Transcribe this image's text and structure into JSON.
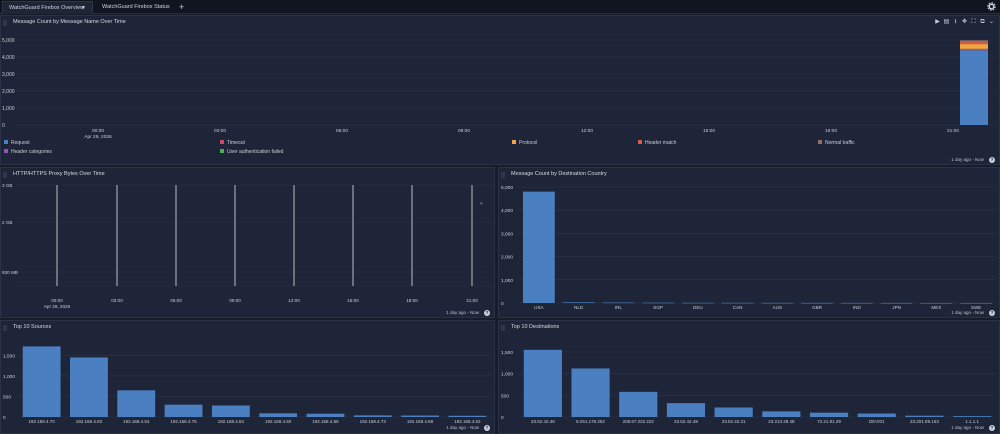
{
  "tabs": [
    {
      "label": "WatchGuard Firebox Overview",
      "active": true
    },
    {
      "label": "WatchGuard Firebox Status",
      "active": false
    }
  ],
  "icons": {
    "add_tab": "plus-icon",
    "settings": "gear-icon",
    "drag": "drag-handle-icon",
    "help": "question-icon"
  },
  "colors": {
    "bar": "#4a7fc1",
    "background": "#171c2b",
    "panel": "#1f2538"
  },
  "panels": {
    "message_count": {
      "title": "Message Count by Message Name Over Time",
      "range": "1 day ago - Now",
      "legend": [
        {
          "label": "Request",
          "color": "#4a7fc1"
        },
        {
          "label": "Timeout",
          "color": "#d3456a"
        },
        {
          "label": "Protocol",
          "color": "#f2a541"
        },
        {
          "label": "Header match",
          "color": "#d9594c"
        },
        {
          "label": "Normal traffic",
          "color": "#8f6f64"
        },
        {
          "label": "Header categories",
          "color": "#8e58b8"
        },
        {
          "label": "User authentication failed",
          "color": "#4caf50"
        }
      ]
    },
    "proxy_bytes": {
      "title": "HTTP/HTTPS Proxy Bytes Over Time",
      "range": "1 day ago - Now"
    },
    "dest_country": {
      "title": "Message Count by Destination Country",
      "range": "1 day ago - Now"
    },
    "top_sources": {
      "title": "Top 10 Sources",
      "range": "1 day ago - Now"
    },
    "top_destinations": {
      "title": "Top 10 Destinations",
      "range": "1 day ago - Now"
    }
  },
  "chart_data": [
    {
      "id": "message_count",
      "type": "bar",
      "stacked": true,
      "x": [
        "00:00",
        "03:00",
        "06:00",
        "09:00",
        "12:00",
        "15:00",
        "18:00",
        "21:00"
      ],
      "x_sublabel": "Apr 29, 2026",
      "yticks": [
        "5,000",
        "4,000",
        "3,000",
        "2,000",
        "1,000",
        "0"
      ],
      "ylim": [
        0,
        5000
      ],
      "bar_time": "21:00",
      "series": [
        {
          "name": "Request",
          "value": 4400
        },
        {
          "name": "Timeout",
          "value": 80
        },
        {
          "name": "Protocol",
          "value": 280
        },
        {
          "name": "Header match",
          "value": 120
        },
        {
          "name": "Normal traffic",
          "value": 100
        }
      ]
    },
    {
      "id": "proxy_bytes",
      "type": "line",
      "x": [
        "00:00",
        "03:00",
        "06:00",
        "09:00",
        "12:00",
        "15:00",
        "18:00",
        "21:00"
      ],
      "x_sublabel": "Apr 29, 2026",
      "yticks": [
        "3 GB",
        "2 GB",
        "930 MB"
      ],
      "ylim": [
        0,
        3
      ]
    },
    {
      "id": "dest_country",
      "type": "bar",
      "categories": [
        "USA",
        "NLD",
        "IRL",
        "SGP",
        "DEU",
        "CAN",
        "AUS",
        "GBR",
        "IND",
        "JPN",
        "MEX",
        "SWE"
      ],
      "values": [
        4800,
        30,
        20,
        15,
        10,
        8,
        6,
        5,
        4,
        3,
        2,
        2
      ],
      "yticks": [
        "5,000",
        "4,000",
        "3,000",
        "2,000",
        "1,000",
        "0"
      ],
      "ylim": [
        0,
        5000
      ]
    },
    {
      "id": "top_sources",
      "type": "bar",
      "categories": [
        "192.168.4.70",
        "192.168.4.83",
        "192.168.4.54",
        "192.168.4.75",
        "192.168.4.84",
        "192.168.4.50",
        "192.168.4.56",
        "192.168.4.73",
        "192.168.4.68",
        "192.168.4.52"
      ],
      "values": [
        1720,
        1450,
        650,
        300,
        280,
        90,
        80,
        40,
        35,
        30
      ],
      "yticks": [
        "1,500",
        "1,000",
        "500",
        "0"
      ],
      "ylim": [
        0,
        1900
      ]
    },
    {
      "id": "top_destinations",
      "type": "bar",
      "categories": [
        "23.52.42.46",
        "8.251.175.252",
        "208.67.222.222",
        "23.52.42.49",
        "23.52.42.21",
        "23.213.48.48",
        "72.21.91.29",
        "DEVI01",
        "23.201.89.163",
        "1.1.1.1"
      ],
      "values": [
        1550,
        1120,
        580,
        320,
        220,
        130,
        100,
        80,
        30,
        20
      ],
      "yticks": [
        "1,500",
        "1,000",
        "500",
        "0"
      ],
      "ylim": [
        0,
        1800
      ]
    }
  ]
}
